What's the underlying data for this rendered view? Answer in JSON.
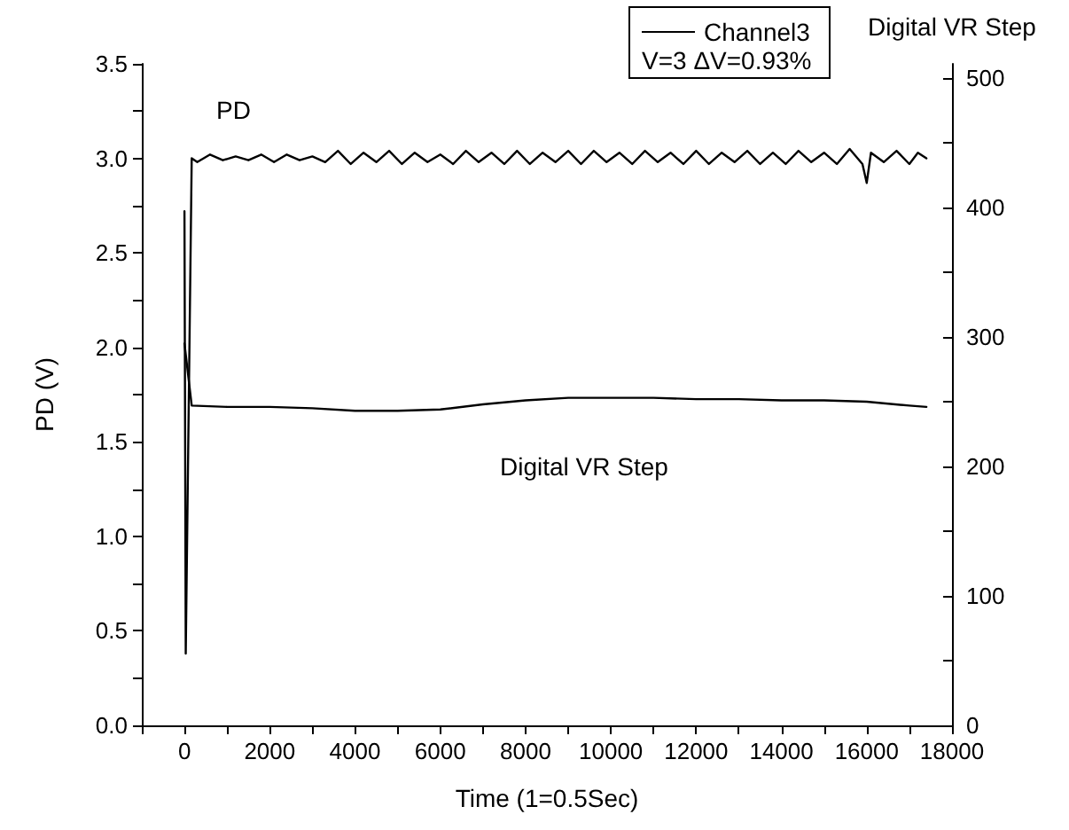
{
  "chart_data": {
    "type": "line",
    "xlabel": "Time (1=0.5Sec)",
    "ylabel": "PD (V)",
    "y2label": "Digital VR Step",
    "annotations": [
      "V=3 ΔV=0.93%",
      "PD",
      "Digital VR Step"
    ],
    "series": [
      {
        "name": "Channel3",
        "color": "#000000",
        "x": [
          0,
          30,
          170,
          300,
          600,
          900,
          1200,
          1500,
          1800,
          2100,
          2400,
          2700,
          3000,
          3300,
          3600,
          3900,
          4200,
          4500,
          4800,
          5100,
          5400,
          5700,
          6000,
          6300,
          6600,
          6900,
          7200,
          7500,
          7800,
          8100,
          8400,
          8700,
          9000,
          9300,
          9600,
          9900,
          10200,
          10500,
          10800,
          11100,
          11400,
          11700,
          12000,
          12300,
          12600,
          12900,
          13200,
          13500,
          13800,
          14100,
          14400,
          14700,
          15000,
          15300,
          15600,
          15900,
          16000,
          16100,
          16400,
          16700,
          17000,
          17200,
          17400
        ],
        "values": [
          2.72,
          0.38,
          3.0,
          2.98,
          3.02,
          2.99,
          3.01,
          2.99,
          3.02,
          2.98,
          3.02,
          2.99,
          3.01,
          2.98,
          3.04,
          2.97,
          3.03,
          2.98,
          3.04,
          2.97,
          3.03,
          2.98,
          3.02,
          2.97,
          3.04,
          2.98,
          3.03,
          2.97,
          3.04,
          2.97,
          3.03,
          2.98,
          3.04,
          2.97,
          3.04,
          2.98,
          3.03,
          2.97,
          3.04,
          2.98,
          3.03,
          2.97,
          3.04,
          2.97,
          3.03,
          2.98,
          3.04,
          2.97,
          3.03,
          2.97,
          3.04,
          2.98,
          3.03,
          2.97,
          3.05,
          2.97,
          2.87,
          3.03,
          2.98,
          3.04,
          2.97,
          3.03,
          3.0
        ]
      },
      {
        "color": "#000000",
        "axis": "y2",
        "x": [
          0,
          170,
          1000,
          2000,
          3000,
          4000,
          5000,
          6000,
          7000,
          8000,
          9000,
          10000,
          11000,
          12000,
          13000,
          14000,
          15000,
          16000,
          17000,
          17400
        ],
        "values": [
          295,
          247,
          246,
          246,
          245,
          243,
          243,
          244,
          248,
          251,
          253,
          253,
          253,
          252,
          252,
          251,
          251,
          250,
          247,
          246
        ]
      }
    ],
    "xlim": [
      -1000,
      18000
    ],
    "xticks": [
      {
        "value": -1000,
        "label": null
      },
      0,
      {
        "value": 1000,
        "label": null
      },
      2000,
      {
        "value": 3000,
        "label": null
      },
      4000,
      {
        "value": 5000,
        "label": null
      },
      6000,
      {
        "value": 7000,
        "label": null
      },
      8000,
      {
        "value": 9000,
        "label": null
      },
      10000,
      {
        "value": 11000,
        "label": null
      },
      12000,
      {
        "value": 13000,
        "label": null
      },
      14000,
      {
        "value": 15000,
        "label": null
      },
      16000,
      {
        "value": 17000,
        "label": null
      },
      18000
    ],
    "ylim": [
      0,
      3.5
    ],
    "yticks": [
      {
        "value": 0,
        "label": "0.0"
      },
      {
        "value": 0.25,
        "label": null
      },
      0.5,
      {
        "value": 0.75,
        "label": null
      },
      {
        "value": 1,
        "label": "1.0"
      },
      {
        "value": 1.25,
        "label": null
      },
      1.5,
      {
        "value": 1.75,
        "label": null
      },
      {
        "value": 2,
        "label": "2.0"
      },
      {
        "value": 2.25,
        "label": null
      },
      2.5,
      {
        "value": 2.75,
        "label": null
      },
      {
        "value": 3,
        "label": "3.0"
      },
      {
        "value": 3.25,
        "label": null
      },
      3.5
    ],
    "y2lim": [
      0,
      511
    ],
    "y2ticks": [
      0,
      {
        "value": 50,
        "label": null
      },
      100,
      {
        "value": 150,
        "label": null
      },
      200,
      {
        "value": 250,
        "label": null
      },
      300,
      {
        "value": 350,
        "label": null
      },
      400,
      {
        "value": 450,
        "label": null
      },
      500
    ],
    "grid": false,
    "legend": "top right",
    "marker": "none",
    "line_style": "solid"
  }
}
